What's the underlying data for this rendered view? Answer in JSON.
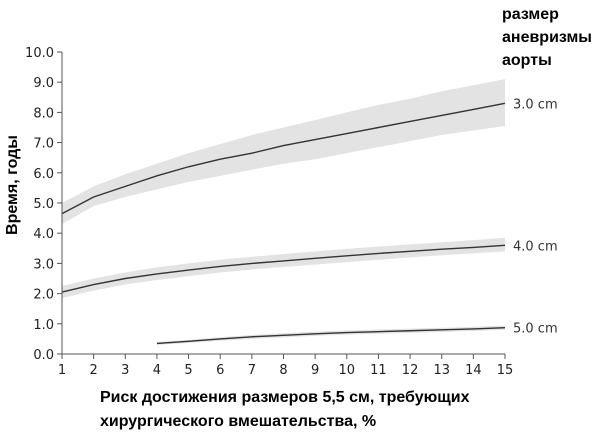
{
  "chart_data": {
    "type": "line",
    "xlabel": [
      "Риск достижения размеров 5,5 см, требующих",
      "хирургического вмешательства, %"
    ],
    "ylabel": "Время, годы",
    "legend_title": [
      "размер",
      "аневризмы",
      "аорты"
    ],
    "xlim": [
      1,
      15
    ],
    "ylim": [
      0,
      10
    ],
    "x_ticks": [
      1,
      2,
      3,
      4,
      5,
      6,
      7,
      8,
      9,
      10,
      11,
      12,
      13,
      14,
      15
    ],
    "y_ticks": [
      "0.0",
      "1.0",
      "2.0",
      "3.0",
      "4.0",
      "5.0",
      "6.0",
      "7.0",
      "8.0",
      "9.0",
      "10.0"
    ],
    "grid": false,
    "series": [
      {
        "name": "3.0 cm",
        "x": [
          1,
          2,
          3,
          4,
          5,
          6,
          7,
          8,
          9,
          10,
          11,
          12,
          13,
          14,
          15
        ],
        "y": [
          4.65,
          5.2,
          5.55,
          5.9,
          6.2,
          6.45,
          6.65,
          6.9,
          7.1,
          7.3,
          7.5,
          7.7,
          7.9,
          8.1,
          8.3
        ],
        "lower": [
          4.3,
          4.9,
          5.2,
          5.45,
          5.7,
          5.9,
          6.1,
          6.3,
          6.45,
          6.65,
          6.85,
          7.05,
          7.25,
          7.4,
          7.55
        ],
        "upper": [
          5.0,
          5.55,
          5.95,
          6.3,
          6.65,
          6.95,
          7.25,
          7.5,
          7.75,
          8.0,
          8.25,
          8.45,
          8.7,
          8.9,
          9.1
        ]
      },
      {
        "name": "4.0 cm",
        "x": [
          1,
          2,
          3,
          4,
          5,
          6,
          7,
          8,
          9,
          10,
          11,
          12,
          13,
          14,
          15
        ],
        "y": [
          2.05,
          2.3,
          2.5,
          2.65,
          2.78,
          2.9,
          3.0,
          3.08,
          3.17,
          3.25,
          3.33,
          3.4,
          3.47,
          3.53,
          3.6
        ],
        "lower": [
          1.85,
          2.1,
          2.3,
          2.45,
          2.58,
          2.7,
          2.8,
          2.88,
          2.96,
          3.04,
          3.12,
          3.2,
          3.27,
          3.33,
          3.4
        ],
        "upper": [
          2.25,
          2.5,
          2.7,
          2.87,
          3.0,
          3.12,
          3.22,
          3.31,
          3.4,
          3.48,
          3.56,
          3.63,
          3.7,
          3.77,
          3.85
        ]
      },
      {
        "name": "5.0 cm",
        "x": [
          4,
          5,
          6,
          7,
          8,
          9,
          10,
          11,
          12,
          13,
          14,
          15
        ],
        "y": [
          0.35,
          0.42,
          0.5,
          0.57,
          0.62,
          0.67,
          0.71,
          0.74,
          0.77,
          0.8,
          0.83,
          0.87
        ],
        "lower": [
          0.3,
          0.37,
          0.44,
          0.5,
          0.55,
          0.6,
          0.64,
          0.67,
          0.7,
          0.73,
          0.76,
          0.8
        ],
        "upper": [
          0.4,
          0.47,
          0.56,
          0.63,
          0.69,
          0.74,
          0.78,
          0.81,
          0.84,
          0.87,
          0.9,
          0.94
        ]
      }
    ],
    "colors": {
      "line": "#333333",
      "band": "#e3e3e3",
      "axis": "#555555"
    }
  }
}
